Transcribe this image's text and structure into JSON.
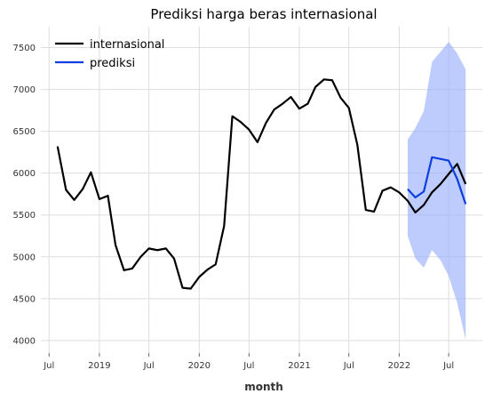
{
  "chart_data": {
    "type": "line",
    "title": "Prediksi harga beras internasional",
    "xlabel": "month",
    "ylabel": "",
    "ylim": [
      3850,
      7750
    ],
    "xlim": [
      "2018-06-01",
      "2022-11-01"
    ],
    "grid": true,
    "legend_position": "top-left",
    "y_ticks": [
      4000,
      4500,
      5000,
      5500,
      6000,
      6500,
      7000,
      7500
    ],
    "x_ticks": [
      {
        "date": "2018-07-01",
        "label": "Jul"
      },
      {
        "date": "2019-01-01",
        "label": "2019"
      },
      {
        "date": "2019-07-01",
        "label": "Jul"
      },
      {
        "date": "2020-01-01",
        "label": "2020"
      },
      {
        "date": "2020-07-01",
        "label": "Jul"
      },
      {
        "date": "2021-01-01",
        "label": "2021"
      },
      {
        "date": "2021-07-01",
        "label": "Jul"
      },
      {
        "date": "2022-01-01",
        "label": "2022"
      },
      {
        "date": "2022-07-01",
        "label": "Jul"
      }
    ],
    "series": [
      {
        "name": "internasional",
        "color": "#000000",
        "points": [
          [
            "2018-08-01",
            6320
          ],
          [
            "2018-09-01",
            5800
          ],
          [
            "2018-10-01",
            5680
          ],
          [
            "2018-11-01",
            5810
          ],
          [
            "2018-12-01",
            6010
          ],
          [
            "2019-01-01",
            5690
          ],
          [
            "2019-02-01",
            5730
          ],
          [
            "2019-03-01",
            5140
          ],
          [
            "2019-04-01",
            4840
          ],
          [
            "2019-05-01",
            4860
          ],
          [
            "2019-06-01",
            5000
          ],
          [
            "2019-07-01",
            5100
          ],
          [
            "2019-08-01",
            5080
          ],
          [
            "2019-09-01",
            5100
          ],
          [
            "2019-10-01",
            4980
          ],
          [
            "2019-11-01",
            4630
          ],
          [
            "2019-12-01",
            4620
          ],
          [
            "2020-01-01",
            4760
          ],
          [
            "2020-02-01",
            4850
          ],
          [
            "2020-03-01",
            4910
          ],
          [
            "2020-04-01",
            5370
          ],
          [
            "2020-05-01",
            6680
          ],
          [
            "2020-06-01",
            6610
          ],
          [
            "2020-07-01",
            6520
          ],
          [
            "2020-08-01",
            6370
          ],
          [
            "2020-09-01",
            6600
          ],
          [
            "2020-10-01",
            6760
          ],
          [
            "2020-11-01",
            6830
          ],
          [
            "2020-12-01",
            6910
          ],
          [
            "2021-01-01",
            6770
          ],
          [
            "2021-02-01",
            6830
          ],
          [
            "2021-03-01",
            7030
          ],
          [
            "2021-04-01",
            7120
          ],
          [
            "2021-05-01",
            7110
          ],
          [
            "2021-06-01",
            6900
          ],
          [
            "2021-07-01",
            6780
          ],
          [
            "2021-08-01",
            6340
          ],
          [
            "2021-09-01",
            5560
          ],
          [
            "2021-10-01",
            5540
          ],
          [
            "2021-11-01",
            5790
          ],
          [
            "2021-12-01",
            5830
          ],
          [
            "2022-01-01",
            5770
          ],
          [
            "2022-02-01",
            5670
          ],
          [
            "2022-03-01",
            5530
          ],
          [
            "2022-04-01",
            5620
          ],
          [
            "2022-05-01",
            5770
          ],
          [
            "2022-06-01",
            5870
          ],
          [
            "2022-07-01",
            5990
          ],
          [
            "2022-08-01",
            6110
          ],
          [
            "2022-09-01",
            5870
          ]
        ]
      },
      {
        "name": "prediksi",
        "color": "#0d3fe0",
        "points": [
          [
            "2022-02-01",
            5810
          ],
          [
            "2022-03-01",
            5710
          ],
          [
            "2022-04-01",
            5780
          ],
          [
            "2022-05-01",
            6190
          ],
          [
            "2022-06-01",
            6170
          ],
          [
            "2022-07-01",
            6150
          ],
          [
            "2022-08-01",
            5930
          ],
          [
            "2022-09-01",
            5630
          ]
        ],
        "band": {
          "color": "#9ab0fa",
          "upper": [
            6400,
            6540,
            6740,
            7330,
            7450,
            7570,
            7430,
            7240
          ],
          "lower": [
            5250,
            4980,
            4870,
            5080,
            4960,
            4770,
            4450,
            4010
          ]
        }
      }
    ]
  }
}
